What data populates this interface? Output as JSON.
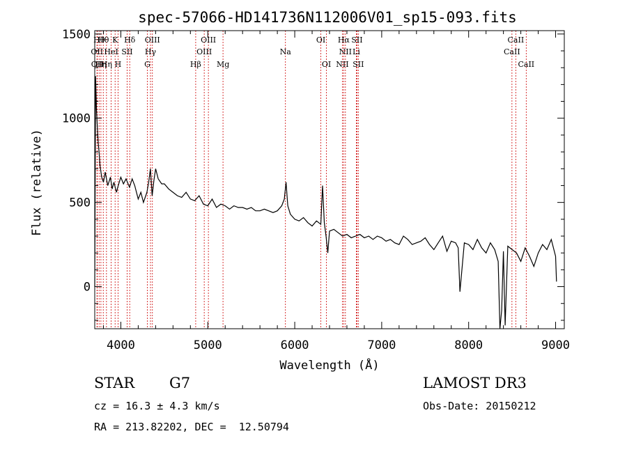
{
  "chart_data": {
    "type": "line",
    "title": "spec-57066-HD141736N112006V01_sp15-093.fits",
    "xlabel": "Wavelength (Å)",
    "ylabel": "Flux (relative)",
    "xlim": [
      3700,
      9100
    ],
    "ylim": [
      -250,
      1520
    ],
    "xticks": [
      4000,
      5000,
      6000,
      7000,
      8000,
      9000
    ],
    "yticks": [
      0,
      500,
      1000,
      1500
    ],
    "grid": false,
    "series": [
      {
        "x": [
          3700,
          3710,
          3720,
          3730,
          3740,
          3750,
          3760,
          3780,
          3800,
          3820,
          3850,
          3880,
          3900,
          3920,
          3950,
          3970,
          4000,
          4030,
          4060,
          4100,
          4130,
          4160,
          4200,
          4230,
          4260,
          4300,
          4320,
          4340,
          4360,
          4380,
          4400,
          4430,
          4470,
          4500,
          4550,
          4600,
          4650,
          4700,
          4750,
          4800,
          4850,
          4900,
          4950,
          5000,
          5050,
          5100,
          5150,
          5200,
          5250,
          5300,
          5350,
          5400,
          5450,
          5500,
          5550,
          5600,
          5650,
          5700,
          5750,
          5800,
          5850,
          5880,
          5900,
          5920,
          5950,
          6000,
          6050,
          6100,
          6150,
          6200,
          6250,
          6300,
          6320,
          6340,
          6360,
          6380,
          6400,
          6450,
          6500,
          6550,
          6600,
          6650,
          6700,
          6750,
          6800,
          6850,
          6900,
          6950,
          7000,
          7050,
          7100,
          7150,
          7200,
          7250,
          7300,
          7350,
          7400,
          7450,
          7500,
          7550,
          7600,
          7650,
          7700,
          7750,
          7800,
          7850,
          7880,
          7900,
          7950,
          8000,
          8050,
          8100,
          8150,
          8200,
          8250,
          8300,
          8340,
          8360,
          8380,
          8400,
          8420,
          8450,
          8500,
          8550,
          8600,
          8650,
          8700,
          8750,
          8800,
          8850,
          8900,
          8950,
          9000,
          9010
        ],
        "values": [
          0,
          1250,
          1050,
          950,
          850,
          800,
          720,
          650,
          620,
          680,
          600,
          650,
          580,
          620,
          560,
          600,
          650,
          610,
          640,
          590,
          640,
          600,
          520,
          560,
          500,
          560,
          620,
          700,
          540,
          630,
          700,
          640,
          610,
          610,
          580,
          560,
          540,
          530,
          560,
          520,
          510,
          540,
          490,
          480,
          520,
          470,
          490,
          480,
          460,
          480,
          470,
          470,
          460,
          470,
          450,
          450,
          460,
          450,
          440,
          450,
          480,
          520,
          620,
          480,
          430,
          400,
          390,
          410,
          380,
          360,
          390,
          370,
          600,
          380,
          300,
          200,
          330,
          340,
          320,
          300,
          310,
          290,
          300,
          310,
          290,
          300,
          280,
          300,
          290,
          270,
          280,
          260,
          250,
          300,
          280,
          250,
          260,
          270,
          290,
          250,
          220,
          260,
          300,
          210,
          270,
          260,
          230,
          -30,
          260,
          250,
          220,
          280,
          230,
          200,
          260,
          220,
          150,
          -250,
          -140,
          210,
          -230,
          240,
          220,
          200,
          150,
          230,
          180,
          120,
          200,
          250,
          220,
          280,
          180,
          30
        ]
      }
    ],
    "lines": [
      {
        "x": 3726,
        "label": "OII",
        "row": 2
      },
      {
        "x": 3729,
        "label": "OII",
        "row": 3
      },
      {
        "x": 3750,
        "label": "Hθ",
        "row": 1
      },
      {
        "x": 3771,
        "label": "Hη",
        "row": 3
      },
      {
        "x": 3798,
        "label": "Hθ",
        "row": 1
      },
      {
        "x": 3835,
        "label": "Hη",
        "row": 3
      },
      {
        "x": 3889,
        "label": "HeI",
        "row": 2
      },
      {
        "x": 3934,
        "label": "K",
        "row": 1
      },
      {
        "x": 3968,
        "label": "H",
        "row": 3
      },
      {
        "x": 4072,
        "label": "SII",
        "row": 2
      },
      {
        "x": 4102,
        "label": "Hδ",
        "row": 1
      },
      {
        "x": 4305,
        "label": "G",
        "row": 3
      },
      {
        "x": 4341,
        "label": "Hγ",
        "row": 2
      },
      {
        "x": 4363,
        "label": "OIII",
        "row": 1
      },
      {
        "x": 4861,
        "label": "Hβ",
        "row": 3
      },
      {
        "x": 4959,
        "label": "OIII",
        "row": 2
      },
      {
        "x": 5007,
        "label": "OIII",
        "row": 1
      },
      {
        "x": 5175,
        "label": "Mg",
        "row": 3
      },
      {
        "x": 5893,
        "label": "Na",
        "row": 2
      },
      {
        "x": 6300,
        "label": "OI",
        "row": 1
      },
      {
        "x": 6364,
        "label": "OI",
        "row": 3
      },
      {
        "x": 6548,
        "label": "NII",
        "row": 3
      },
      {
        "x": 6563,
        "label": "Hα",
        "row": 1
      },
      {
        "x": 6583,
        "label": "NII",
        "row": 2
      },
      {
        "x": 6708,
        "label": "Li",
        "row": 2
      },
      {
        "x": 6716,
        "label": "SII",
        "row": 1
      },
      {
        "x": 6731,
        "label": "SII",
        "row": 3
      },
      {
        "x": 8498,
        "label": "CaII",
        "row": 2
      },
      {
        "x": 8542,
        "label": "CaII",
        "row": 1
      },
      {
        "x": 8662,
        "label": "CaII",
        "row": 3
      }
    ]
  },
  "info": {
    "object_class": "STAR",
    "subclass": "G7",
    "survey": "LAMOST DR3",
    "redshift": "cz = 16.3 ± 4.3 km/s",
    "obs_date": "Obs-Date: 20150212",
    "coords": "RA = 213.82202, DEC =  12.50794"
  }
}
